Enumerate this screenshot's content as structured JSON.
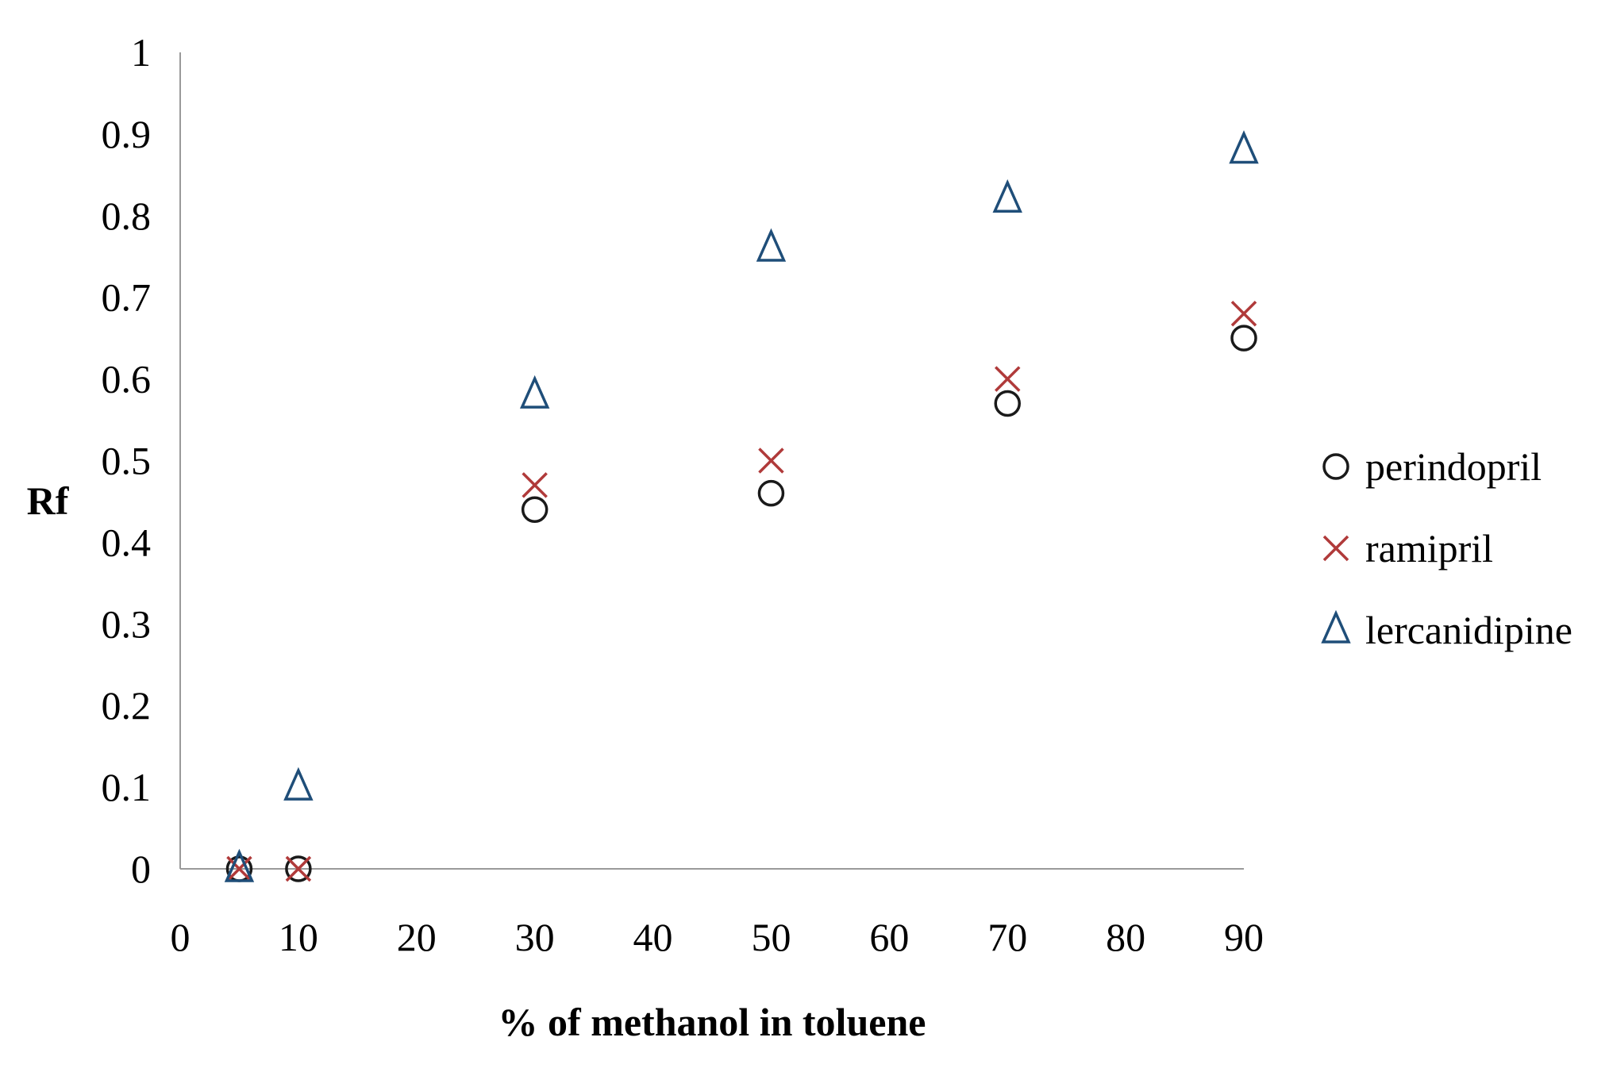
{
  "chart_data": {
    "type": "scatter",
    "title": "",
    "xlabel": "% of methanol in toluene",
    "ylabel": "Rf",
    "xlim": [
      0,
      90
    ],
    "ylim": [
      0,
      1
    ],
    "x_ticks": [
      0,
      10,
      20,
      30,
      40,
      50,
      60,
      70,
      80,
      90
    ],
    "y_ticks": [
      0,
      0.1,
      0.2,
      0.3,
      0.4,
      0.5,
      0.6,
      0.7,
      0.8,
      0.9,
      1
    ],
    "x_tick_labels": [
      "0",
      "10",
      "20",
      "30",
      "40",
      "50",
      "60",
      "70",
      "80",
      "90"
    ],
    "y_tick_labels": [
      "0",
      "0.1",
      "0.2",
      "0.3",
      "0.4",
      "0.5",
      "0.6",
      "0.7",
      "0.8",
      "0.9",
      "1"
    ],
    "grid": false,
    "legend_position": "right",
    "series": [
      {
        "name": "perindopril",
        "marker": "circle",
        "color": "#1a1a1a",
        "x": [
          5,
          10,
          30,
          50,
          70,
          90
        ],
        "y": [
          0,
          0,
          0.44,
          0.46,
          0.57,
          0.65
        ]
      },
      {
        "name": "ramipril",
        "marker": "x",
        "color": "#b03a3a",
        "x": [
          5,
          10,
          30,
          50,
          70,
          90
        ],
        "y": [
          0,
          0,
          0.47,
          0.5,
          0.6,
          0.68
        ]
      },
      {
        "name": "lercanidipine",
        "marker": "triangle",
        "color": "#1f4e79",
        "x": [
          5,
          10,
          30,
          50,
          70,
          90
        ],
        "y": [
          0,
          0.1,
          0.58,
          0.76,
          0.82,
          0.88
        ]
      }
    ]
  }
}
